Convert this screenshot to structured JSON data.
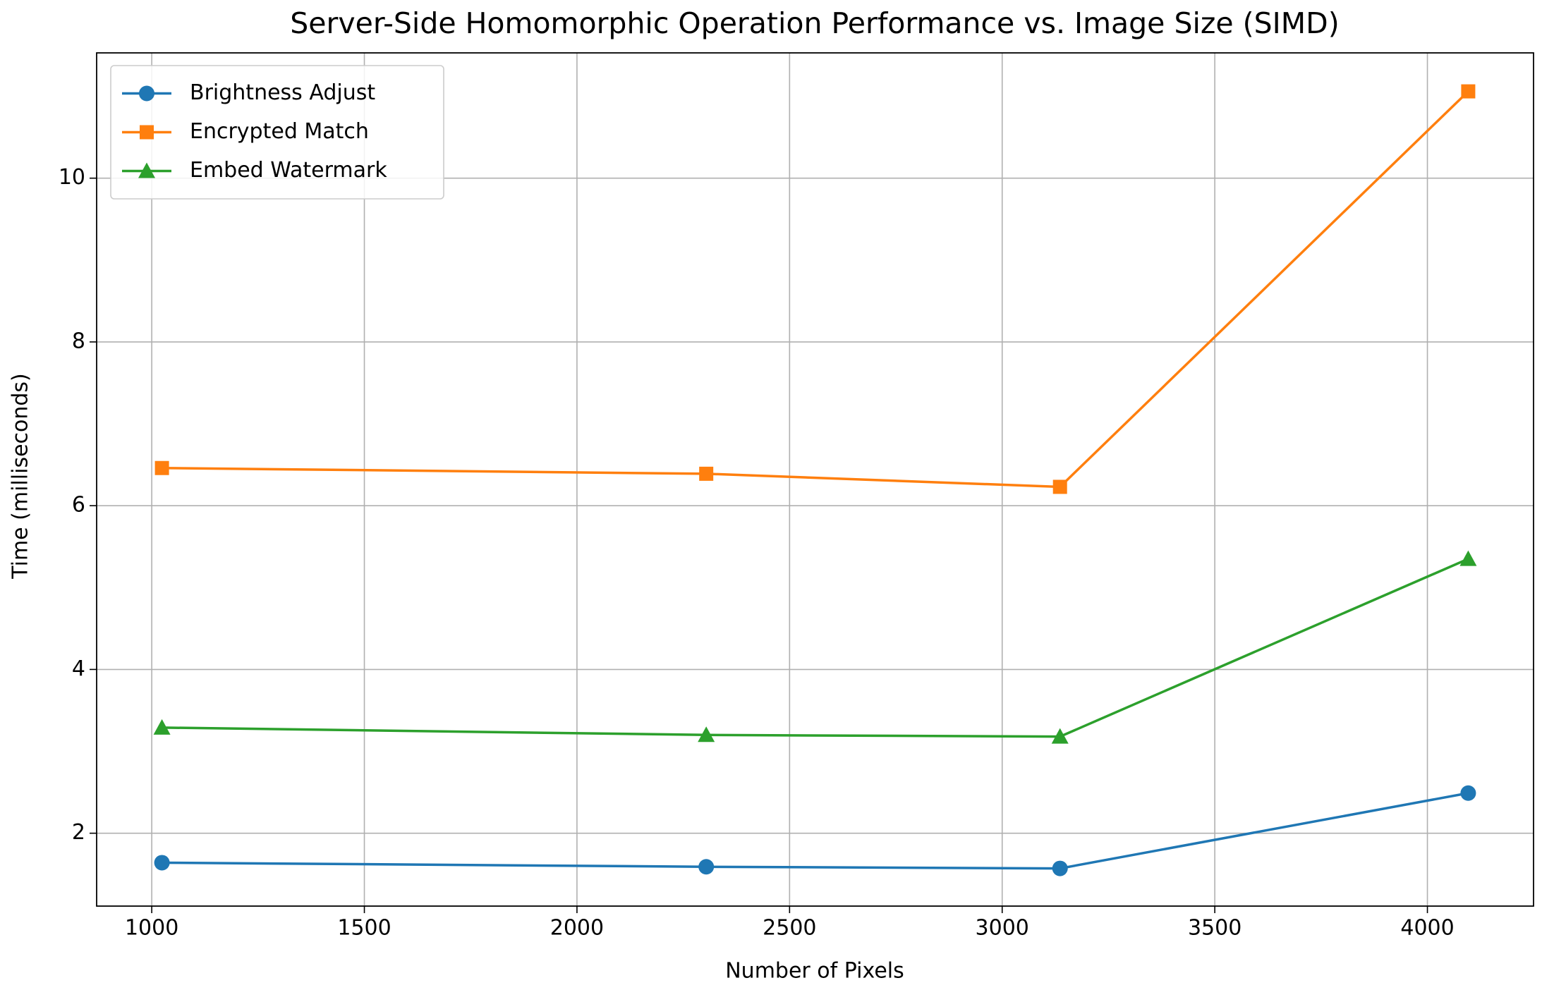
{
  "chart_data": {
    "type": "line",
    "title": "Server-Side Homomorphic Operation Performance vs. Image Size (SIMD)",
    "xlabel": "Number of Pixels",
    "ylabel": "Time (milliseconds)",
    "x": [
      1024,
      2304,
      3136,
      4096
    ],
    "series": [
      {
        "name": "Brightness Adjust",
        "color": "#1f77b4",
        "marker": "circle",
        "values": [
          1.64,
          1.59,
          1.57,
          2.49
        ]
      },
      {
        "name": "Encrypted Match",
        "color": "#ff7f0e",
        "marker": "square",
        "values": [
          6.46,
          6.39,
          6.23,
          11.06
        ]
      },
      {
        "name": "Embed Watermark",
        "color": "#2ca02c",
        "marker": "triangle",
        "values": [
          3.29,
          3.2,
          3.18,
          5.35
        ]
      }
    ],
    "xlim": [
      870.4,
      4249.6
    ],
    "xticks": [
      1000,
      1500,
      2000,
      2500,
      3000,
      3500,
      4000
    ],
    "ylim": [
      1.11,
      11.53
    ],
    "yticks": [
      2,
      4,
      6,
      8,
      10
    ],
    "grid": true,
    "legend": "upper left"
  }
}
